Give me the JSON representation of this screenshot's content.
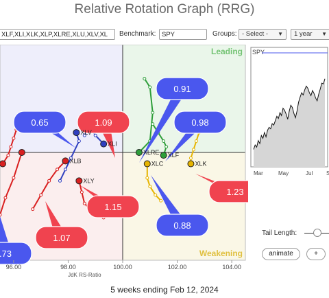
{
  "title": "Relative Rotation Graph (RRG)",
  "controls": {
    "tickers_value": "XLF,XLI,XLK,XLP,XLRE,XLU,XLV,XL",
    "benchmark_label": "Benchmark:",
    "benchmark_value": "SPY",
    "groups_label": "Groups:",
    "groups_value": "- Select -",
    "period_value": "1 year",
    "tail_length_label": "Tail Length:",
    "animate_label": "animate",
    "plus_label": "+"
  },
  "footer": "5 weeks ending Feb 12, 2024",
  "colors": {
    "leading_bg": "#eaf6ea",
    "improving_bg": "#eeeefb",
    "lagging_bg": "#fbeeee",
    "weakening_bg": "#faf7e6",
    "callout_blue": "#4a57ee",
    "callout_red": "#f0434f"
  },
  "chart_data": {
    "type": "scatter",
    "xlabel": "JdK RS-Ratio",
    "x_ticks": [
      "96.00",
      "98.00",
      "100.00",
      "102.00",
      "104.00"
    ],
    "xlim": [
      95.5,
      104.5
    ],
    "ylim": [
      96.6,
      104.2
    ],
    "quadrants": {
      "leading": "Leading",
      "weakening": "Weakening"
    },
    "series": [
      {
        "name": "XLRE",
        "color": "#2e9e3a",
        "x": [
          100.8,
          101.0,
          101.1,
          101.0,
          100.6
        ],
        "y": [
          103.0,
          102.7,
          101.8,
          100.8,
          100.4
        ]
      },
      {
        "name": "XLF",
        "color": "#2e9e3a",
        "x": [
          101.1,
          101.3,
          101.5,
          101.6,
          101.5
        ],
        "y": [
          101.4,
          101.1,
          100.8,
          100.6,
          100.3
        ]
      },
      {
        "name": "XLC",
        "color": "#e6b400",
        "x": [
          101.4,
          101.2,
          101.0,
          100.9,
          100.9
        ],
        "y": [
          98.7,
          98.9,
          99.2,
          99.5,
          100.0
        ]
      },
      {
        "name": "XLK",
        "color": "#e6b400",
        "x": [
          102.8,
          102.7,
          102.6,
          102.5,
          102.5
        ],
        "y": [
          101.1,
          100.8,
          100.5,
          100.2,
          100.0
        ]
      },
      {
        "name": "XLI",
        "color": "#2f3fbf",
        "x": [
          98.6,
          98.7,
          98.8,
          99.0,
          99.3
        ],
        "y": [
          101.0,
          101.2,
          101.3,
          101.0,
          100.7
        ]
      },
      {
        "name": "XLV",
        "color": "#2f3fbf",
        "x": [
          97.7,
          97.9,
          98.1,
          98.4,
          98.3
        ],
        "y": [
          99.4,
          99.8,
          100.2,
          100.8,
          101.1
        ]
      },
      {
        "name": "XLY",
        "color": "#d92020",
        "x": [
          99.3,
          98.9,
          98.6,
          98.5,
          98.4
        ],
        "y": [
          98.1,
          98.3,
          98.6,
          99.0,
          99.4
        ]
      },
      {
        "name": "XLB",
        "color": "#d92020",
        "x": [
          96.7,
          97.0,
          97.3,
          97.6,
          97.9
        ],
        "y": [
          98.4,
          98.9,
          99.4,
          99.8,
          100.1
        ]
      },
      {
        "name": "XLU",
        "color": "#d92020",
        "x": [
          95.3,
          95.5,
          95.7,
          96.0,
          96.3
        ],
        "y": [
          97.5,
          98.2,
          98.8,
          99.5,
          100.4
        ]
      },
      {
        "name": "XLP",
        "color": "#d92020",
        "x": [
          96.1,
          96.0,
          95.9,
          95.8,
          95.6
        ],
        "y": [
          101.2,
          100.9,
          100.6,
          100.3,
          100.0
        ]
      }
    ],
    "visible_labels": [
      "XLRE",
      "XLF",
      "XLC",
      "XLK",
      "XLI",
      "XLV",
      "XLY",
      "XLB"
    ],
    "callouts": [
      {
        "text": "0.91",
        "color": "blue"
      },
      {
        "text": "0.98",
        "color": "blue"
      },
      {
        "text": "0.65",
        "color": "blue"
      },
      {
        "text": "1.09",
        "color": "red"
      },
      {
        "text": "1.23",
        "color": "red"
      },
      {
        "text": "1.15",
        "color": "red"
      },
      {
        "text": "0.88",
        "color": "blue"
      },
      {
        "text": "1.07",
        "color": "red"
      },
      {
        "text": ".73",
        "color": "blue"
      }
    ],
    "mini_chart": {
      "title": "SPY",
      "x_ticks": [
        "Mar",
        "May",
        "Jul",
        "S"
      ],
      "values": [
        380,
        392,
        386,
        404,
        396,
        418,
        410,
        426,
        414,
        432,
        440,
        436,
        450,
        446,
        458,
        470,
        464,
        480,
        472,
        492,
        486,
        476,
        462,
        484,
        500,
        494,
        478,
        466,
        484,
        508,
        522,
        534,
        528,
        542,
        552,
        546,
        534,
        526,
        540,
        532,
        520,
        512,
        530,
        544,
        560,
        558,
        572
      ]
    }
  }
}
